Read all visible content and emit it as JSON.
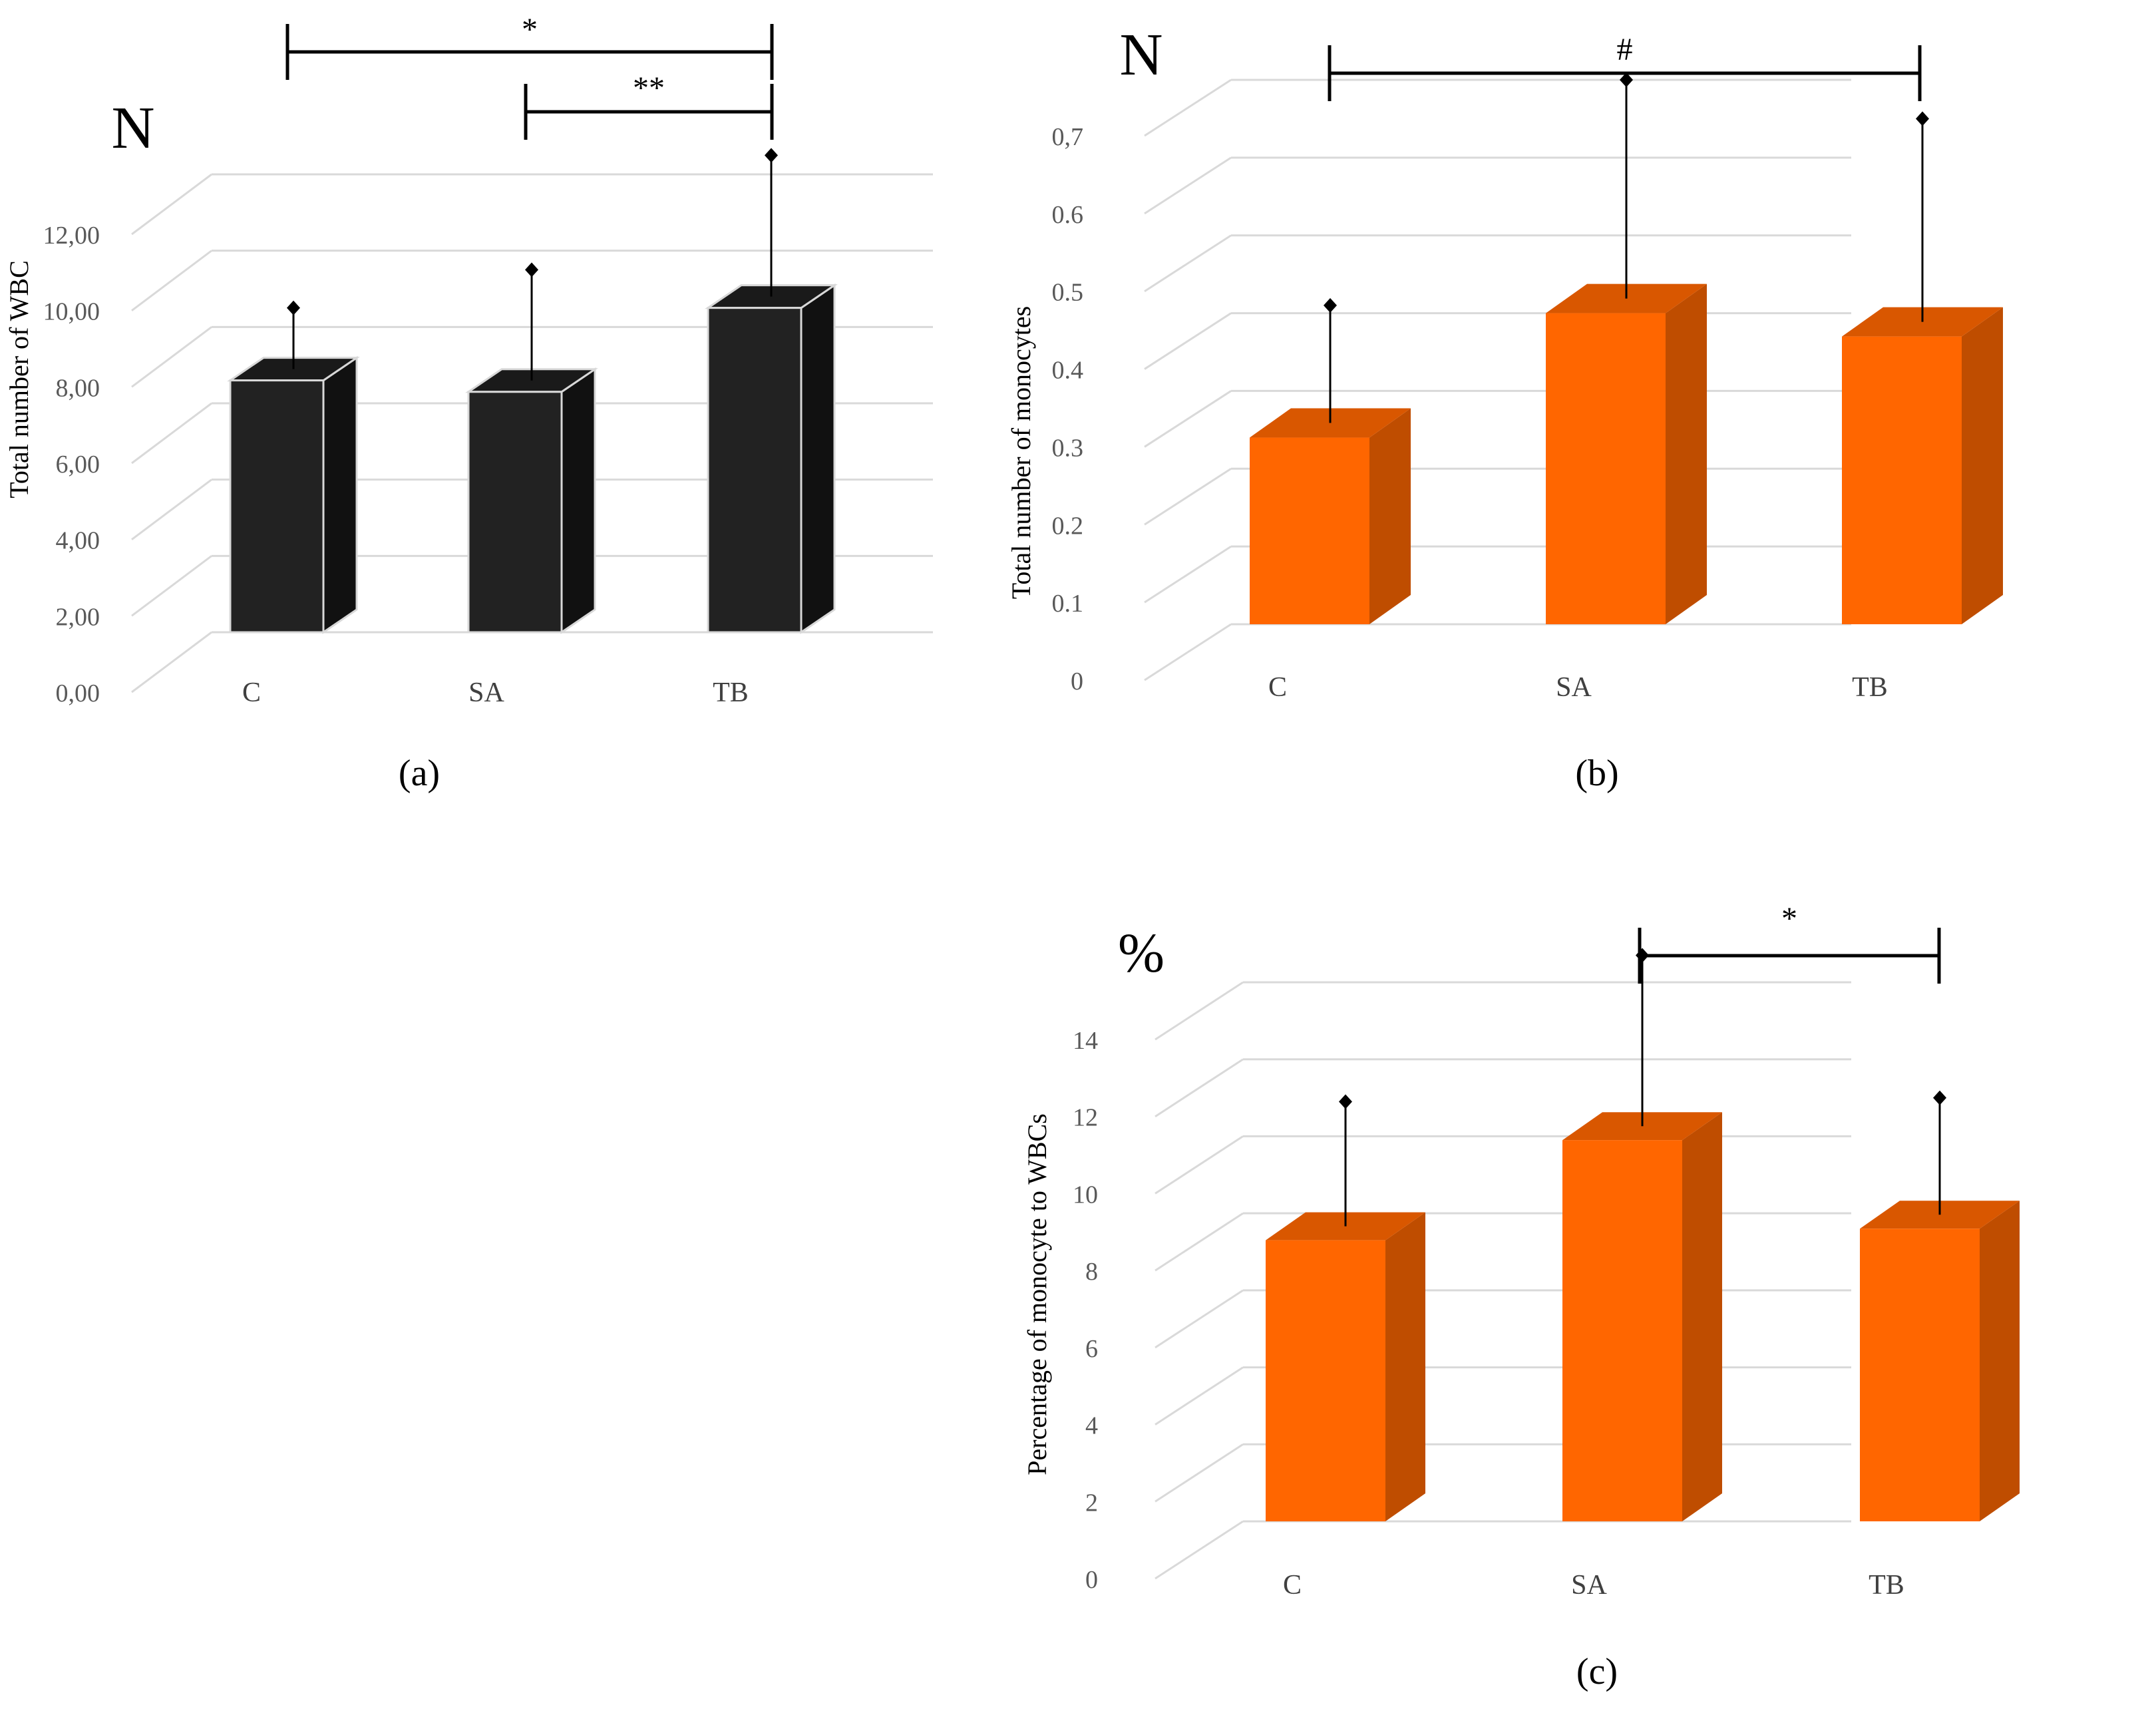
{
  "chart_data": [
    {
      "type": "bar",
      "panel_label": "(a)",
      "unit_label": "N",
      "ylabel": "Total number of WBC",
      "categories": [
        "C",
        "SA",
        "TB"
      ],
      "values": [
        6.6,
        6.3,
        8.5
      ],
      "error": [
        1.9,
        3.2,
        4.0
      ],
      "ylim": [
        0,
        12
      ],
      "yticks": [
        "0,00",
        "2,00",
        "4,00",
        "6,00",
        "8,00",
        "10,00",
        "12,00"
      ],
      "grid": true,
      "bar_color": "#222222",
      "significance": [
        {
          "from": "C",
          "to": "TB",
          "label": "*"
        },
        {
          "from": "SA",
          "to": "TB",
          "label": "**"
        }
      ]
    },
    {
      "type": "bar",
      "panel_label": "(b)",
      "unit_label": "N",
      "ylabel": "Total number of monocytes",
      "categories": [
        "C",
        "SA",
        "TB"
      ],
      "values": [
        0.24,
        0.4,
        0.37
      ],
      "error": [
        0.17,
        0.3,
        0.28
      ],
      "ylim": [
        0,
        0.7
      ],
      "yticks": [
        "0",
        "0.1",
        "0.2",
        "0.3",
        "0.4",
        "0.5",
        "0.6",
        "0,7"
      ],
      "grid": true,
      "bar_color": "#ff6600",
      "significance": [
        {
          "from": "C",
          "to": "TB",
          "label": "#"
        }
      ]
    },
    {
      "type": "bar",
      "panel_label": "(c)",
      "unit_label": "%",
      "ylabel": "Percentage of monocyte to WBCs",
      "categories": [
        "C",
        "SA",
        "TB"
      ],
      "values": [
        7.3,
        9.9,
        7.6
      ],
      "error": [
        3.6,
        4.8,
        3.4
      ],
      "ylim": [
        0,
        14
      ],
      "yticks": [
        "0",
        "2",
        "4",
        "6",
        "8",
        "10",
        "12",
        "14"
      ],
      "grid": true,
      "bar_color": "#ff6600",
      "significance": [
        {
          "from": "SA",
          "to": "TB",
          "label": "*"
        }
      ]
    }
  ]
}
